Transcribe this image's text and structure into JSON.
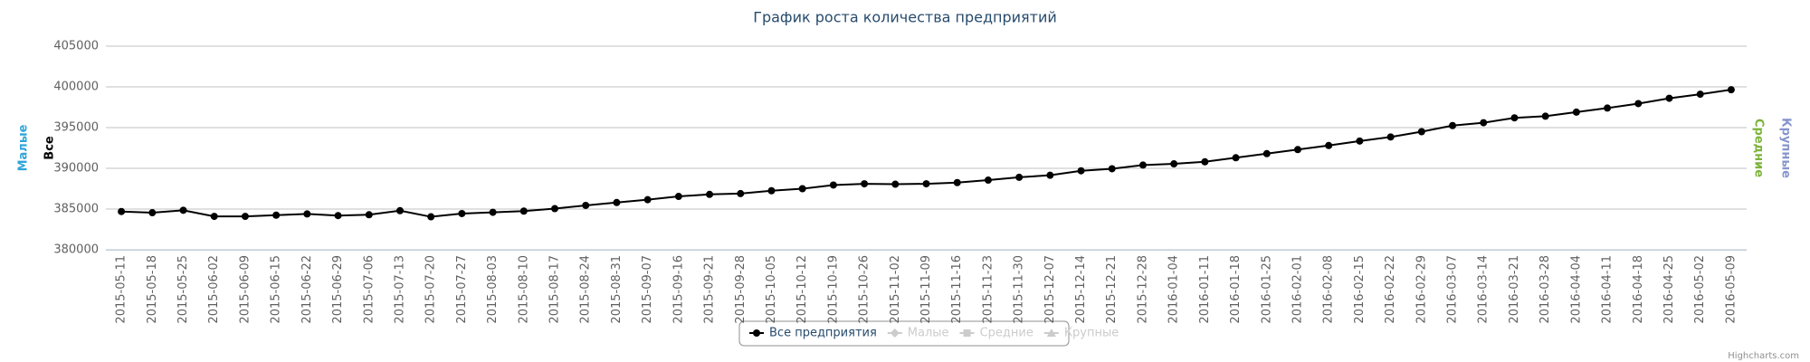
{
  "chart_data": {
    "type": "line",
    "title": "График роста количества предприятий",
    "categories": [
      "2015-05-11",
      "2015-05-18",
      "2015-05-25",
      "2015-06-02",
      "2015-06-09",
      "2015-06-15",
      "2015-06-22",
      "2015-06-29",
      "2015-07-06",
      "2015-07-13",
      "2015-07-20",
      "2015-07-27",
      "2015-08-03",
      "2015-08-10",
      "2015-08-17",
      "2015-08-24",
      "2015-08-31",
      "2015-09-07",
      "2015-09-16",
      "2015-09-21",
      "2015-09-28",
      "2015-10-05",
      "2015-10-12",
      "2015-10-19",
      "2015-10-26",
      "2015-11-02",
      "2015-11-09",
      "2015-11-16",
      "2015-11-23",
      "2015-11-30",
      "2015-12-07",
      "2015-12-14",
      "2015-12-21",
      "2015-12-28",
      "2016-01-04",
      "2016-01-11",
      "2016-01-18",
      "2016-01-25",
      "2016-02-01",
      "2016-02-08",
      "2016-02-15",
      "2016-02-22",
      "2016-02-29",
      "2016-03-07",
      "2016-03-14",
      "2016-03-21",
      "2016-03-28",
      "2016-04-04",
      "2016-04-11",
      "2016-04-18",
      "2016-04-25",
      "2016-05-02",
      "2016-05-09"
    ],
    "series": [
      {
        "name": "Все предприятия",
        "color": "#000000",
        "values": [
          384700,
          384550,
          384850,
          384100,
          384100,
          384250,
          384400,
          384200,
          384300,
          384800,
          384050,
          384450,
          384600,
          384750,
          385050,
          385450,
          385800,
          386150,
          386550,
          386800,
          386900,
          387250,
          387500,
          387950,
          388100,
          388050,
          388100,
          388250,
          388550,
          388900,
          389150,
          389700,
          389950,
          390400,
          390550,
          390800,
          391300,
          391800,
          392300,
          392800,
          393350,
          393850,
          394500,
          395250,
          395600,
          396200,
          396400,
          396900,
          397400,
          397950,
          398600,
          399100,
          399650
        ]
      }
    ],
    "legend_hidden": [
      "Малые",
      "Средние",
      "Крупные"
    ],
    "axis_titles": [
      {
        "text": "Малые",
        "color": "#2fa4d9",
        "side": "left"
      },
      {
        "text": "Все",
        "color": "#000000",
        "side": "left"
      },
      {
        "text": "Средние",
        "color": "#7cb33a",
        "side": "right"
      },
      {
        "text": "Крупные",
        "color": "#8594cc",
        "side": "right"
      }
    ],
    "ylim": [
      380000,
      405000
    ],
    "yticks": [
      380000,
      385000,
      390000,
      395000,
      400000,
      405000
    ],
    "grid": true,
    "legend": "bottom",
    "credits": "Highcharts.com"
  }
}
